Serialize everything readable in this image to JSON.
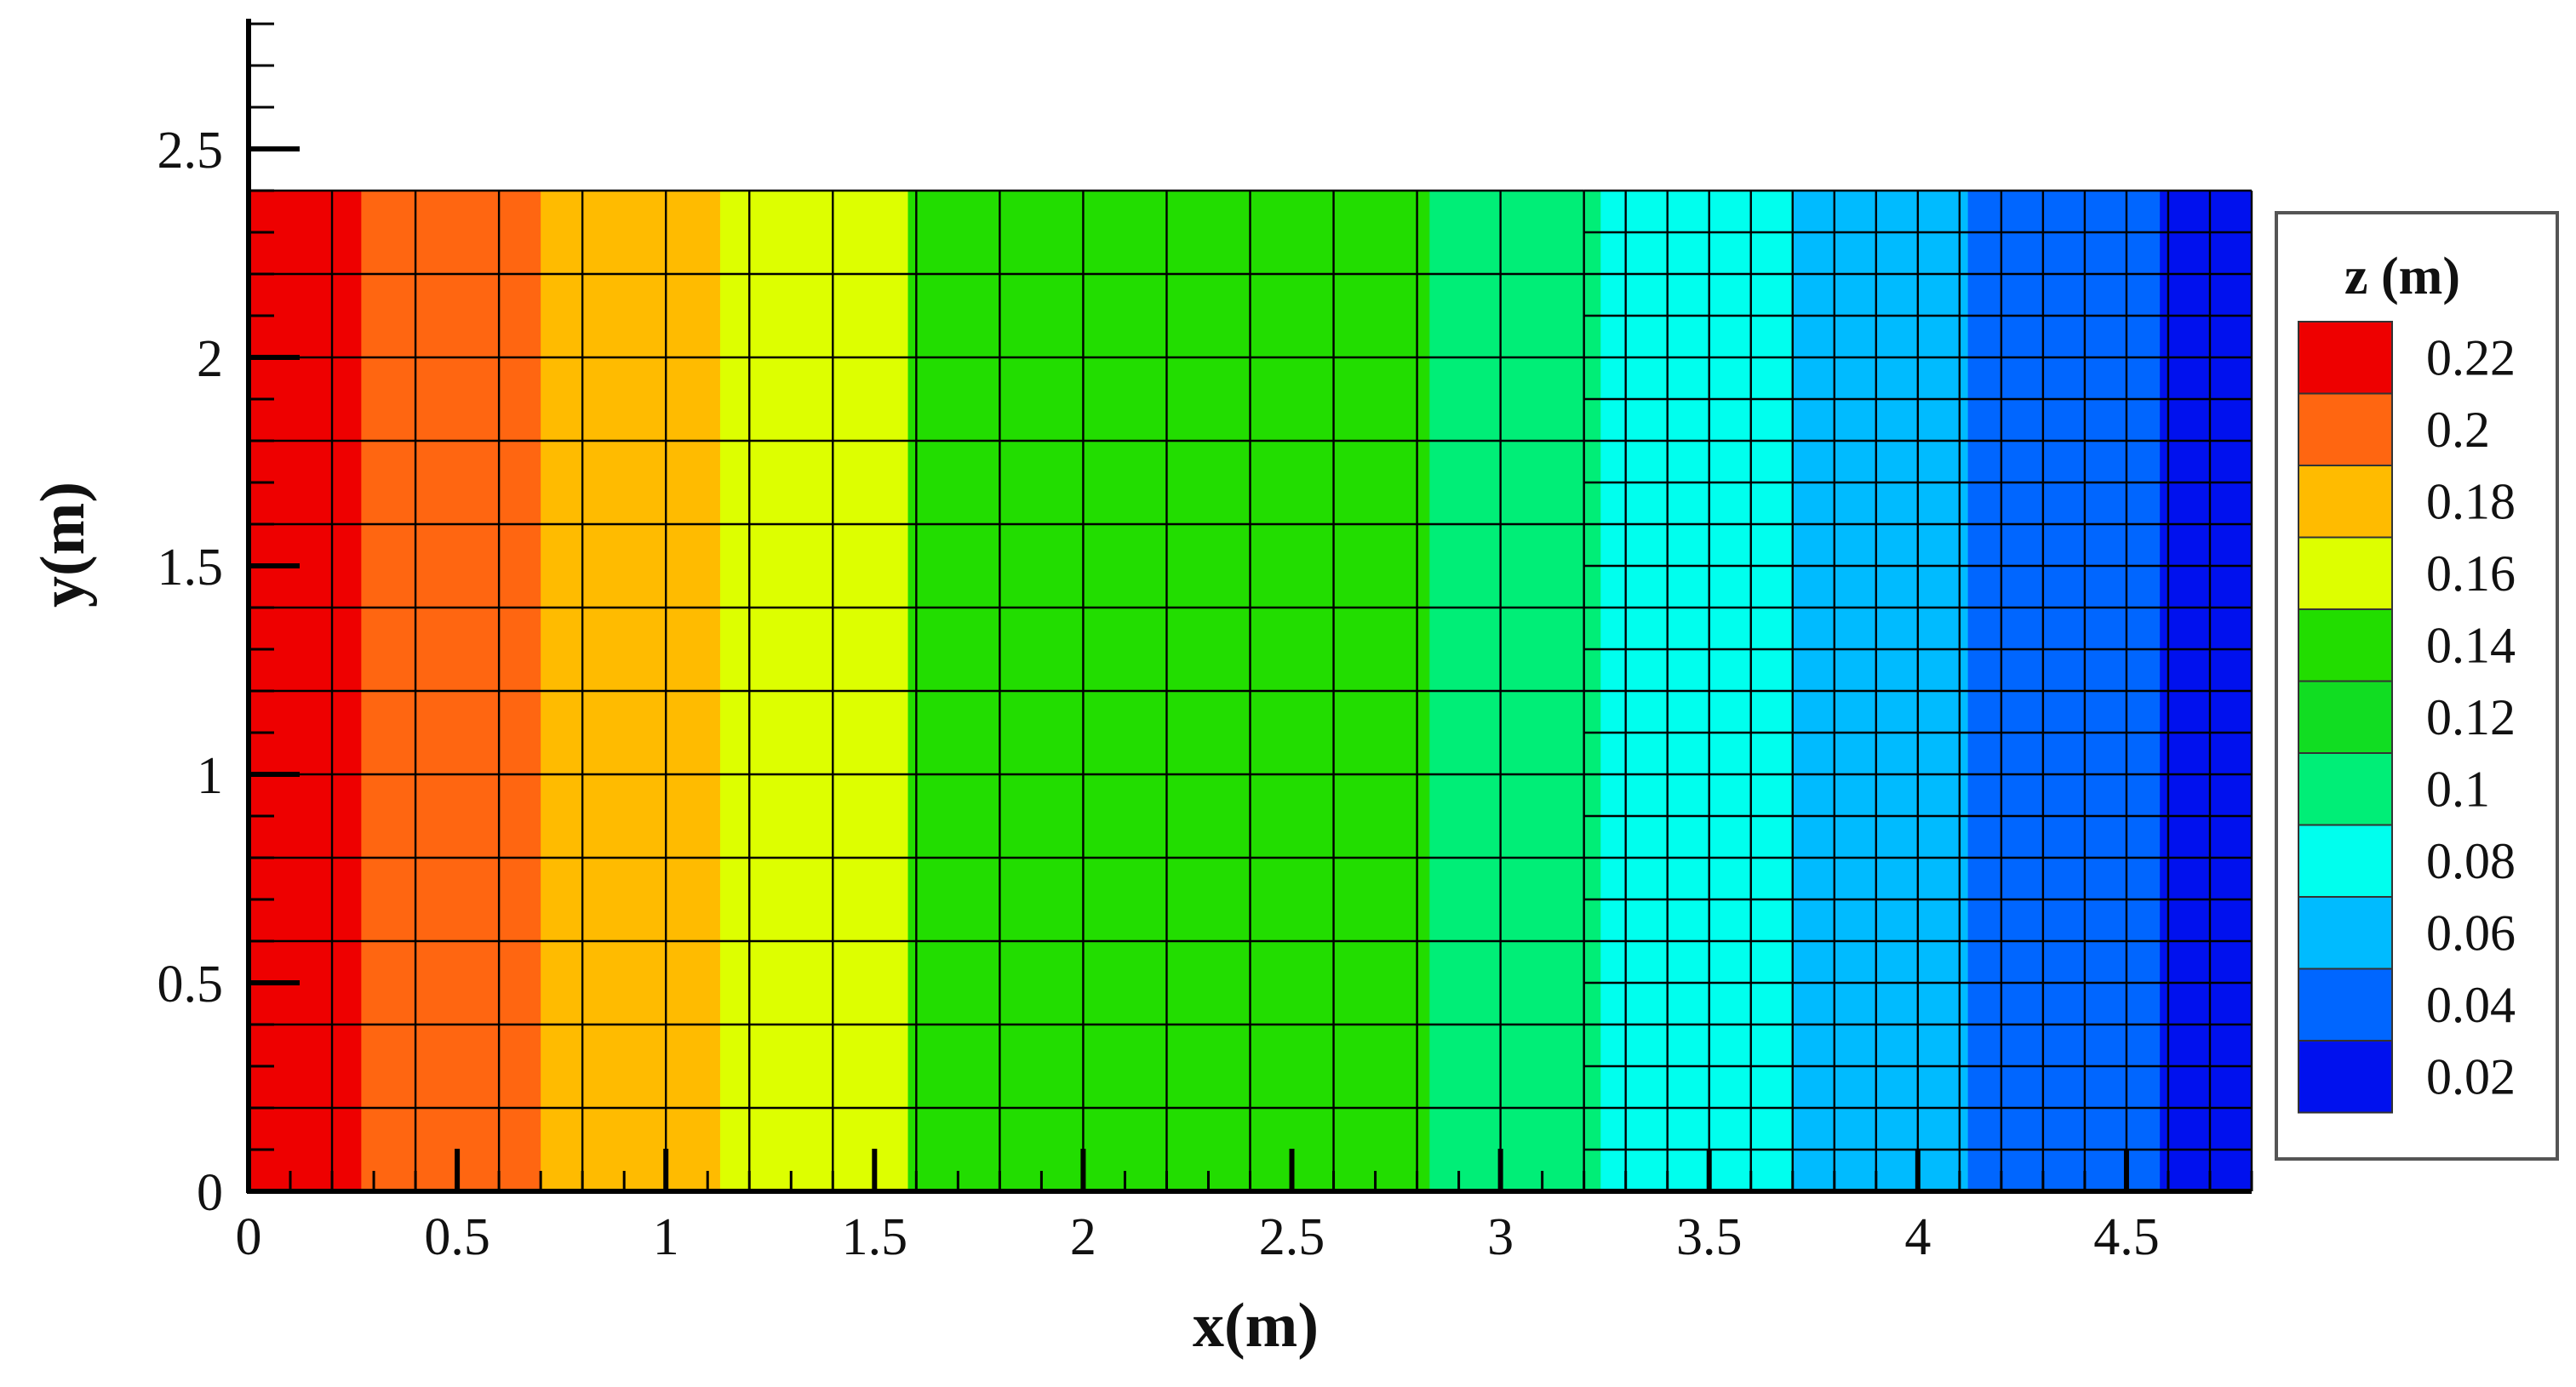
{
  "chart_data": {
    "type": "heatmap",
    "title": "",
    "xlabel": "x(m)",
    "ylabel": "y(m)",
    "xlim": [
      0,
      4.8
    ],
    "ylim": [
      0,
      2.8
    ],
    "domain": {
      "x": [
        0,
        4.8
      ],
      "y": [
        0,
        2.4
      ]
    },
    "x_ticks": [
      0,
      0.5,
      1,
      1.5,
      2,
      2.5,
      3,
      3.5,
      4,
      4.5
    ],
    "x_tick_labels": [
      "0",
      "0.5",
      "1",
      "1.5",
      "2",
      "2.5",
      "3",
      "3.5",
      "4",
      "4.5"
    ],
    "y_ticks": [
      0,
      0.5,
      1,
      1.5,
      2,
      2.5
    ],
    "y_tick_labels": [
      "0",
      "0.5",
      "1",
      "1.5",
      "2",
      "2.5"
    ],
    "grid": "on",
    "mesh": [
      {
        "x_from": 0,
        "x_to": 3.2,
        "dx": 0.2,
        "dy": 0.2
      },
      {
        "x_from": 3.2,
        "x_to": 4.8,
        "dx": 0.1,
        "dy": 0.1
      }
    ],
    "bands": [
      {
        "x_from": 0.0,
        "x_to": 0.27,
        "level": 0.22
      },
      {
        "x_from": 0.27,
        "x_to": 0.7,
        "level": 0.2
      },
      {
        "x_from": 0.7,
        "x_to": 1.13,
        "level": 0.18
      },
      {
        "x_from": 1.13,
        "x_to": 1.58,
        "level": 0.16
      },
      {
        "x_from": 1.58,
        "x_to": 2.83,
        "level": 0.14
      },
      {
        "x_from": 2.83,
        "x_to": 3.24,
        "level": 0.1
      },
      {
        "x_from": 3.24,
        "x_to": 3.7,
        "level": 0.08
      },
      {
        "x_from": 3.7,
        "x_to": 4.12,
        "level": 0.06
      },
      {
        "x_from": 4.12,
        "x_to": 4.58,
        "level": 0.04
      },
      {
        "x_from": 4.58,
        "x_to": 4.8,
        "level": 0.02
      }
    ],
    "legend": {
      "title": "z (m)",
      "position": "right",
      "levels": [
        {
          "label": "0.22",
          "color": "#ee0000"
        },
        {
          "label": "0.2",
          "color": "#ff6611"
        },
        {
          "label": "0.18",
          "color": "#ffbb00"
        },
        {
          "label": "0.16",
          "color": "#ddff00"
        },
        {
          "label": "0.14",
          "color": "#22dd00"
        },
        {
          "label": "0.12",
          "color": "#11dd22"
        },
        {
          "label": "0.1",
          "color": "#00ee77"
        },
        {
          "label": "0.08",
          "color": "#00ffee"
        },
        {
          "label": "0.06",
          "color": "#00bbff"
        },
        {
          "label": "0.04",
          "color": "#0066ff"
        },
        {
          "label": "0.02",
          "color": "#0011ee"
        }
      ]
    }
  }
}
